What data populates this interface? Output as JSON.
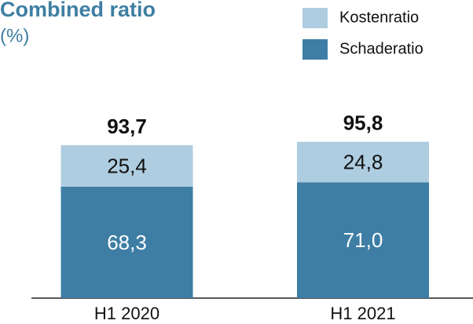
{
  "chart_data": {
    "type": "stacked-bar",
    "title": "Combined ratio",
    "subtitle": "(%)",
    "categories": [
      "H1 2020",
      "H1 2021"
    ],
    "series": [
      {
        "name": "Kostenratio",
        "color": "#aecde1",
        "values": [
          25.4,
          24.8
        ],
        "value_labels": [
          "25,4",
          "24,8"
        ]
      },
      {
        "name": "Schaderatio",
        "color": "#3e7ea4",
        "values": [
          68.3,
          71.0
        ],
        "value_labels": [
          "68,3",
          "71,0"
        ]
      }
    ],
    "totals": [
      93.7,
      95.8
    ],
    "total_labels": [
      "93,7",
      "95,8"
    ]
  }
}
